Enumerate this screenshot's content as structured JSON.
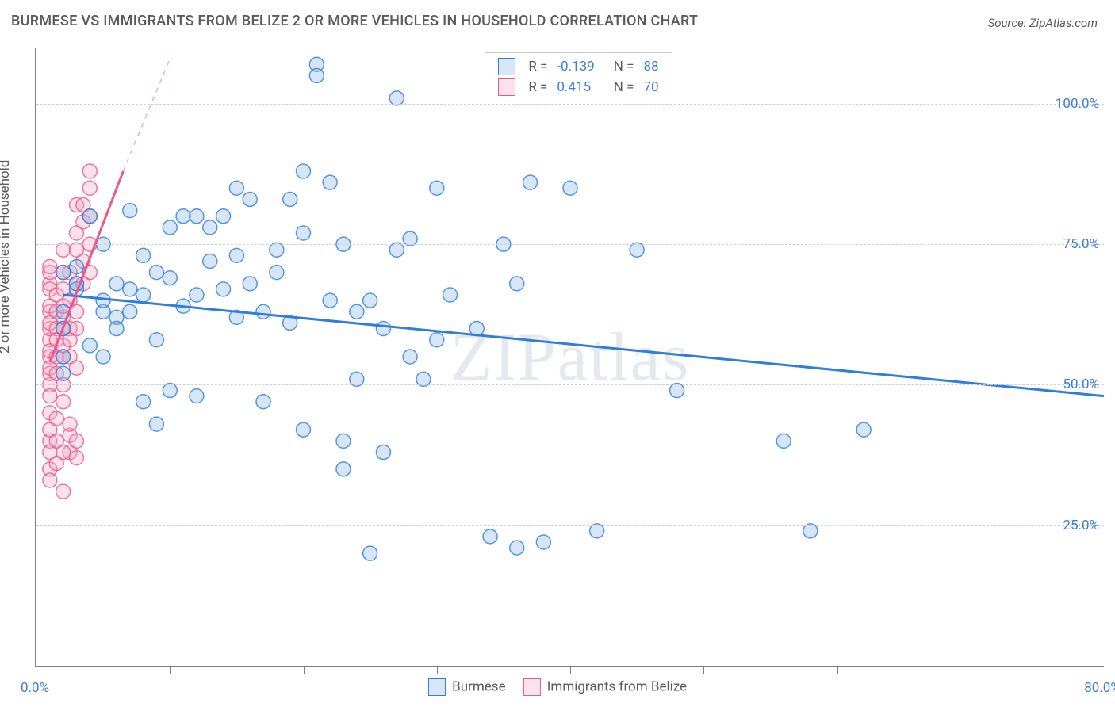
{
  "title": "BURMESE VS IMMIGRANTS FROM BELIZE 2 OR MORE VEHICLES IN HOUSEHOLD CORRELATION CHART",
  "source": "Source: ZipAtlas.com",
  "watermark": "ZIPatlas",
  "y_axis_label": "2 or more Vehicles in Household",
  "x_range": [
    0,
    80
  ],
  "y_range": [
    0,
    110
  ],
  "x_ticks_labeled": [
    {
      "v": 0,
      "label": "0.0%"
    },
    {
      "v": 80,
      "label": "80.0%"
    }
  ],
  "x_ticks_minor": [
    10,
    20,
    30,
    40,
    50,
    60,
    70
  ],
  "y_ticks": [
    {
      "v": 25,
      "label": "25.0%"
    },
    {
      "v": 50,
      "label": "50.0%"
    },
    {
      "v": 75,
      "label": "75.0%"
    },
    {
      "v": 100,
      "label": "100.0%"
    }
  ],
  "y_grid_top": 108,
  "colors": {
    "blue_stroke": "#2f7ed8",
    "blue_fill": "#8ab8e6",
    "pink_stroke": "#e75a8d",
    "pink_fill": "#f4a9c4",
    "grid": "#d0d0d0",
    "axis": "#808080",
    "text": "#5a5a5a",
    "val": "#3b7dd8"
  },
  "marker_radius": 9,
  "series": [
    {
      "id": "burmese",
      "label": "Burmese",
      "r_value": "-0.139",
      "n_value": "88",
      "color_stroke": "#2f7ed8",
      "color_fill": "#8ab8e6",
      "reg_solid": {
        "x1": 2,
        "y1": 66,
        "x2": 80,
        "y2": 48
      },
      "points": [
        [
          2,
          63
        ],
        [
          2,
          55
        ],
        [
          2,
          52
        ],
        [
          2,
          60
        ],
        [
          2,
          70
        ],
        [
          3,
          67
        ],
        [
          3,
          71
        ],
        [
          3,
          68
        ],
        [
          4,
          57
        ],
        [
          4,
          80
        ],
        [
          5,
          63
        ],
        [
          5,
          55
        ],
        [
          5,
          65
        ],
        [
          5,
          75
        ],
        [
          6,
          62
        ],
        [
          6,
          68
        ],
        [
          6,
          60
        ],
        [
          7,
          63
        ],
        [
          7,
          67
        ],
        [
          7,
          81
        ],
        [
          8,
          66
        ],
        [
          8,
          73
        ],
        [
          8,
          47
        ],
        [
          9,
          70
        ],
        [
          9,
          58
        ],
        [
          9,
          43
        ],
        [
          10,
          69
        ],
        [
          10,
          49
        ],
        [
          10,
          78
        ],
        [
          11,
          80
        ],
        [
          11,
          64
        ],
        [
          12,
          66
        ],
        [
          12,
          48
        ],
        [
          12,
          80
        ],
        [
          13,
          78
        ],
        [
          13,
          72
        ],
        [
          14,
          80
        ],
        [
          14,
          67
        ],
        [
          15,
          85
        ],
        [
          15,
          73
        ],
        [
          15,
          62
        ],
        [
          16,
          83
        ],
        [
          16,
          68
        ],
        [
          17,
          63
        ],
        [
          17,
          47
        ],
        [
          18,
          70
        ],
        [
          18,
          74
        ],
        [
          19,
          83
        ],
        [
          19,
          61
        ],
        [
          20,
          77
        ],
        [
          20,
          88
        ],
        [
          20,
          42
        ],
        [
          21,
          107
        ],
        [
          21,
          105
        ],
        [
          22,
          86
        ],
        [
          22,
          65
        ],
        [
          23,
          75
        ],
        [
          23,
          40
        ],
        [
          23,
          35
        ],
        [
          24,
          63
        ],
        [
          24,
          51
        ],
        [
          25,
          20
        ],
        [
          25,
          65
        ],
        [
          26,
          60
        ],
        [
          26,
          38
        ],
        [
          27,
          74
        ],
        [
          27,
          101
        ],
        [
          28,
          76
        ],
        [
          28,
          55
        ],
        [
          29,
          51
        ],
        [
          30,
          85
        ],
        [
          30,
          58
        ],
        [
          31,
          66
        ],
        [
          33,
          60
        ],
        [
          34,
          23
        ],
        [
          35,
          75
        ],
        [
          36,
          68
        ],
        [
          36,
          21
        ],
        [
          37,
          86
        ],
        [
          38,
          22
        ],
        [
          40,
          85
        ],
        [
          42,
          24
        ],
        [
          45,
          74
        ],
        [
          48,
          49
        ],
        [
          56,
          40
        ],
        [
          58,
          24
        ],
        [
          62,
          42
        ]
      ]
    },
    {
      "id": "belize",
      "label": "Immigrants from Belize",
      "r_value": "0.415",
      "n_value": "70",
      "color_stroke": "#e75a8d",
      "color_fill": "#f4a9c4",
      "reg_solid": {
        "x1": 1,
        "y1": 54,
        "x2": 6.5,
        "y2": 88
      },
      "reg_dash": {
        "x1": 6.5,
        "y1": 88,
        "x2": 10,
        "y2": 108
      },
      "points": [
        [
          1,
          40
        ],
        [
          1,
          35
        ],
        [
          1,
          42
        ],
        [
          1,
          50
        ],
        [
          1,
          55
        ],
        [
          1,
          52
        ],
        [
          1,
          58
        ],
        [
          1,
          60
        ],
        [
          1,
          63
        ],
        [
          1,
          48
        ],
        [
          1,
          45
        ],
        [
          1,
          68
        ],
        [
          1,
          70
        ],
        [
          1,
          38
        ],
        [
          1,
          53
        ],
        [
          1,
          56
        ],
        [
          1,
          61
        ],
        [
          1,
          64
        ],
        [
          1,
          67
        ],
        [
          1,
          71
        ],
        [
          1.5,
          60
        ],
        [
          1.5,
          52
        ],
        [
          1.5,
          55
        ],
        [
          1.5,
          63
        ],
        [
          1.5,
          58
        ],
        [
          1.5,
          66
        ],
        [
          1.5,
          44
        ],
        [
          1.5,
          40
        ],
        [
          2,
          55
        ],
        [
          2,
          57
        ],
        [
          2,
          60
        ],
        [
          2,
          62
        ],
        [
          2,
          64
        ],
        [
          2,
          67
        ],
        [
          2,
          70
        ],
        [
          2,
          74
        ],
        [
          2,
          50
        ],
        [
          2,
          47
        ],
        [
          2.5,
          60
        ],
        [
          2.5,
          58
        ],
        [
          2.5,
          65
        ],
        [
          2.5,
          70
        ],
        [
          2.5,
          55
        ],
        [
          3,
          63
        ],
        [
          3,
          68
        ],
        [
          3,
          74
        ],
        [
          3,
          77
        ],
        [
          3,
          82
        ],
        [
          3,
          60
        ],
        [
          3,
          53
        ],
        [
          3.5,
          79
        ],
        [
          3.5,
          82
        ],
        [
          3.5,
          68
        ],
        [
          3.5,
          72
        ],
        [
          4,
          85
        ],
        [
          4,
          88
        ],
        [
          4,
          80
        ],
        [
          4,
          75
        ],
        [
          4,
          70
        ],
        [
          2,
          31
        ],
        [
          2.5,
          38
        ],
        [
          2.5,
          41
        ],
        [
          2.5,
          43
        ],
        [
          3,
          40
        ],
        [
          3,
          37
        ],
        [
          1,
          33
        ],
        [
          1.5,
          36
        ],
        [
          2,
          38
        ]
      ]
    }
  ],
  "legend_stats_header": {
    "r": "R =",
    "n": "N ="
  }
}
